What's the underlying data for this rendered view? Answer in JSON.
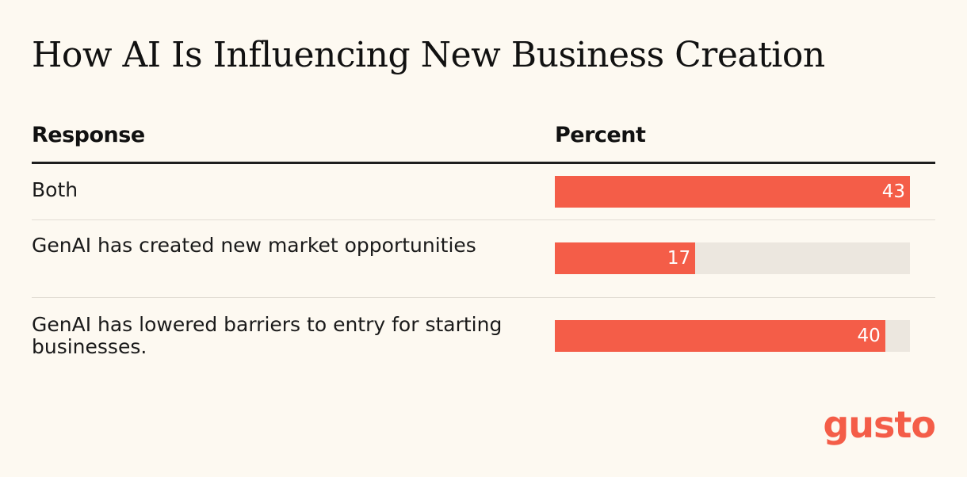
{
  "chart_data": {
    "type": "bar",
    "orientation": "horizontal",
    "title": "How AI Is Influencing New Business Creation",
    "columns": {
      "response": "Response",
      "percent": "Percent"
    },
    "categories": [
      "Both",
      "GenAI has created new market opportunities",
      "GenAI has lowered barriers to entry for starting businesses."
    ],
    "values": [
      43,
      17,
      40
    ],
    "xlim": [
      0,
      43
    ],
    "bar_color": "#f45d48",
    "track_color": "#ece7df"
  },
  "brand": {
    "logo_text": "gusto",
    "color": "#f45d48"
  }
}
